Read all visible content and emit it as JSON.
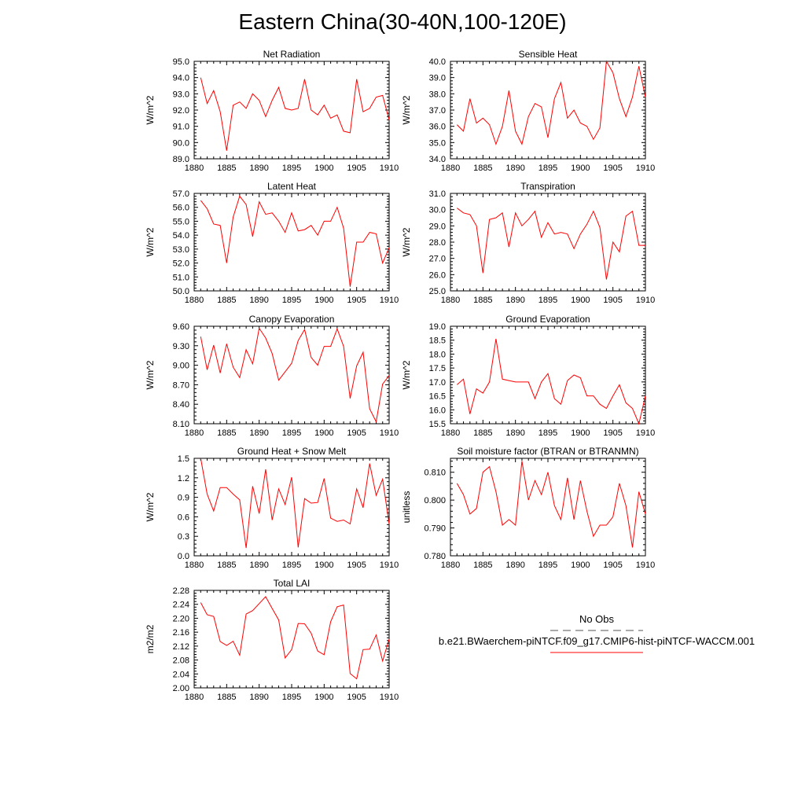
{
  "title": "Eastern China(30-40N,100-120E)",
  "colors": {
    "series": "#ff0000",
    "axis": "#000000",
    "obs": "#555555"
  },
  "legend": {
    "obs_label": "No Obs",
    "model_label": "b.e21.BWaerchem-piNTCF.f09_g17.CMIP6-hist-piNTCF-WACCM.001"
  },
  "chart_data": [
    {
      "type": "line",
      "title": "Net Radiation",
      "ylabel": "W/m^2",
      "xlim": [
        1880,
        1910
      ],
      "ylim": [
        89.0,
        95.0
      ],
      "xticks": [
        "1880",
        "1885",
        "1890",
        "1895",
        "1900",
        "1905",
        "1910"
      ],
      "yticks": [
        "89.0",
        "90.0",
        "91.0",
        "92.0",
        "93.0",
        "94.0",
        "95.0"
      ],
      "series": [
        {
          "x": [
            1881,
            1882,
            1883,
            1884,
            1885,
            1886,
            1887,
            1888,
            1889,
            1890,
            1891,
            1892,
            1893,
            1894,
            1895,
            1896,
            1897,
            1898,
            1899,
            1900,
            1901,
            1902,
            1903,
            1904,
            1905,
            1906,
            1907,
            1908,
            1909,
            1910
          ],
          "values": [
            94.0,
            92.4,
            93.2,
            91.9,
            89.5,
            92.3,
            92.5,
            92.1,
            93.0,
            92.6,
            91.6,
            92.6,
            93.4,
            92.1,
            92.0,
            92.1,
            93.9,
            92.0,
            91.7,
            92.3,
            91.5,
            91.7,
            90.7,
            90.6,
            93.9,
            91.9,
            92.1,
            92.8,
            92.9,
            91.4
          ]
        }
      ]
    },
    {
      "type": "line",
      "title": "Sensible Heat",
      "ylabel": "W/m^2",
      "xlim": [
        1880,
        1910
      ],
      "ylim": [
        34.0,
        40.0
      ],
      "xticks": [
        "1880",
        "1885",
        "1890",
        "1895",
        "1900",
        "1905",
        "1910"
      ],
      "yticks": [
        "34.0",
        "35.0",
        "36.0",
        "37.0",
        "38.0",
        "39.0",
        "40.0"
      ],
      "series": [
        {
          "x": [
            1881,
            1882,
            1883,
            1884,
            1885,
            1886,
            1887,
            1888,
            1889,
            1890,
            1891,
            1892,
            1893,
            1894,
            1895,
            1896,
            1897,
            1898,
            1899,
            1900,
            1901,
            1902,
            1903,
            1904,
            1905,
            1906,
            1907,
            1908,
            1909,
            1910
          ],
          "values": [
            36.1,
            35.7,
            37.7,
            36.2,
            36.5,
            36.1,
            34.9,
            36.0,
            38.2,
            35.7,
            34.9,
            36.6,
            37.4,
            37.2,
            35.3,
            37.7,
            38.7,
            36.5,
            37.0,
            36.2,
            36.0,
            35.2,
            35.9,
            40.0,
            39.3,
            37.7,
            36.6,
            37.8,
            39.7,
            37.8
          ]
        }
      ]
    },
    {
      "type": "line",
      "title": "Latent Heat",
      "ylabel": "W/m^2",
      "xlim": [
        1880,
        1910
      ],
      "ylim": [
        50.0,
        57.0
      ],
      "xticks": [
        "1880",
        "1885",
        "1890",
        "1895",
        "1900",
        "1905",
        "1910"
      ],
      "yticks": [
        "50.0",
        "51.0",
        "52.0",
        "53.0",
        "54.0",
        "55.0",
        "56.0",
        "57.0"
      ],
      "series": [
        {
          "x": [
            1881,
            1882,
            1883,
            1884,
            1885,
            1886,
            1887,
            1888,
            1889,
            1890,
            1891,
            1892,
            1893,
            1894,
            1895,
            1896,
            1897,
            1898,
            1899,
            1900,
            1901,
            1902,
            1903,
            1904,
            1905,
            1906,
            1907,
            1908,
            1909,
            1910
          ],
          "values": [
            56.5,
            55.9,
            54.8,
            54.7,
            52.0,
            55.3,
            56.8,
            56.2,
            53.9,
            56.4,
            55.5,
            55.6,
            55.0,
            54.2,
            55.6,
            54.3,
            54.4,
            54.7,
            54.0,
            55.0,
            55.0,
            56.0,
            54.5,
            50.3,
            53.5,
            53.5,
            54.2,
            54.1,
            52.0,
            53.1
          ]
        }
      ]
    },
    {
      "type": "line",
      "title": "Transpiration",
      "ylabel": "W/m^2",
      "xlim": [
        1880,
        1910
      ],
      "ylim": [
        25.0,
        31.0
      ],
      "xticks": [
        "1880",
        "1885",
        "1890",
        "1895",
        "1900",
        "1905",
        "1910"
      ],
      "yticks": [
        "25.0",
        "26.0",
        "27.0",
        "28.0",
        "29.0",
        "30.0",
        "31.0"
      ],
      "series": [
        {
          "x": [
            1881,
            1882,
            1883,
            1884,
            1885,
            1886,
            1887,
            1888,
            1889,
            1890,
            1891,
            1892,
            1893,
            1894,
            1895,
            1896,
            1897,
            1898,
            1899,
            1900,
            1901,
            1902,
            1903,
            1904,
            1905,
            1906,
            1907,
            1908,
            1909,
            1910
          ],
          "values": [
            30.1,
            29.8,
            29.7,
            29.0,
            26.1,
            29.4,
            29.5,
            29.8,
            27.7,
            29.8,
            29.0,
            29.4,
            29.9,
            28.3,
            29.2,
            28.5,
            28.6,
            28.5,
            27.6,
            28.5,
            29.1,
            29.9,
            28.9,
            25.7,
            28.0,
            27.4,
            29.6,
            29.9,
            27.8,
            27.8
          ]
        }
      ]
    },
    {
      "type": "line",
      "title": "Canopy Evaporation",
      "ylabel": "W/m^2",
      "xlim": [
        1880,
        1910
      ],
      "ylim": [
        8.1,
        9.6
      ],
      "xticks": [
        "1880",
        "1885",
        "1890",
        "1895",
        "1900",
        "1905",
        "1910"
      ],
      "yticks": [
        "8.10",
        "8.40",
        "8.70",
        "9.00",
        "9.30",
        "9.60"
      ],
      "series": [
        {
          "x": [
            1881,
            1882,
            1883,
            1884,
            1885,
            1886,
            1887,
            1888,
            1889,
            1890,
            1891,
            1892,
            1893,
            1894,
            1895,
            1896,
            1897,
            1898,
            1899,
            1900,
            1901,
            1902,
            1903,
            1904,
            1905,
            1906,
            1907,
            1908,
            1909,
            1910
          ],
          "values": [
            9.44,
            8.93,
            9.31,
            8.88,
            9.33,
            8.97,
            8.81,
            9.24,
            9.02,
            9.57,
            9.42,
            9.18,
            8.77,
            8.9,
            9.03,
            9.38,
            9.55,
            9.12,
            9.0,
            9.29,
            9.29,
            9.56,
            9.29,
            8.49,
            8.99,
            9.2,
            8.33,
            8.13,
            8.71,
            8.84
          ]
        }
      ]
    },
    {
      "type": "line",
      "title": "Ground Evaporation",
      "ylabel": "W/m^2",
      "xlim": [
        1880,
        1910
      ],
      "ylim": [
        15.5,
        19.0
      ],
      "xticks": [
        "1880",
        "1885",
        "1890",
        "1895",
        "1900",
        "1905",
        "1910"
      ],
      "yticks": [
        "15.5",
        "16.0",
        "16.5",
        "17.0",
        "17.5",
        "18.0",
        "18.5",
        "19.0"
      ],
      "series": [
        {
          "x": [
            1881,
            1882,
            1883,
            1884,
            1885,
            1886,
            1887,
            1888,
            1889,
            1890,
            1891,
            1892,
            1893,
            1894,
            1895,
            1896,
            1897,
            1898,
            1899,
            1900,
            1901,
            1902,
            1903,
            1904,
            1905,
            1906,
            1907,
            1908,
            1909,
            1910
          ],
          "values": [
            16.9,
            17.1,
            15.85,
            16.75,
            16.6,
            17.0,
            18.55,
            17.1,
            17.05,
            17.0,
            17.0,
            17.0,
            16.4,
            17.0,
            17.3,
            16.4,
            16.2,
            17.05,
            17.25,
            17.15,
            16.5,
            16.5,
            16.2,
            16.05,
            16.5,
            16.9,
            16.25,
            16.05,
            15.5,
            16.5
          ]
        }
      ]
    },
    {
      "type": "line",
      "title": "Ground Heat + Snow Melt",
      "ylabel": "W/m^2",
      "xlim": [
        1880,
        1910
      ],
      "ylim": [
        0.0,
        1.5
      ],
      "xticks": [
        "1880",
        "1885",
        "1890",
        "1895",
        "1900",
        "1905",
        "1910"
      ],
      "yticks": [
        "0.0",
        "0.3",
        "0.6",
        "0.9",
        "1.2",
        "1.5"
      ],
      "series": [
        {
          "x": [
            1881,
            1882,
            1883,
            1884,
            1885,
            1886,
            1887,
            1888,
            1889,
            1890,
            1891,
            1892,
            1893,
            1894,
            1895,
            1896,
            1897,
            1898,
            1899,
            1900,
            1901,
            1902,
            1903,
            1904,
            1905,
            1906,
            1907,
            1908,
            1909,
            1910
          ],
          "values": [
            1.5,
            0.95,
            0.69,
            1.05,
            1.05,
            0.95,
            0.86,
            0.12,
            1.07,
            0.65,
            1.33,
            0.55,
            1.03,
            0.79,
            1.21,
            0.13,
            0.88,
            0.81,
            0.82,
            1.19,
            0.58,
            0.53,
            0.55,
            0.49,
            1.03,
            0.74,
            1.42,
            0.93,
            1.18,
            0.49
          ]
        }
      ]
    },
    {
      "type": "line",
      "title": "Soil moisture factor (BTRAN or BTRANMN)",
      "ylabel": "unitless",
      "xlim": [
        1880,
        1910
      ],
      "ylim": [
        0.78,
        0.815
      ],
      "xticks": [
        "1880",
        "1885",
        "1890",
        "1895",
        "1900",
        "1905",
        "1910"
      ],
      "yticks": [
        "0.780",
        "0.790",
        "0.800",
        "0.810"
      ],
      "series": [
        {
          "x": [
            1881,
            1882,
            1883,
            1884,
            1885,
            1886,
            1887,
            1888,
            1889,
            1890,
            1891,
            1892,
            1893,
            1894,
            1895,
            1896,
            1897,
            1898,
            1899,
            1900,
            1901,
            1902,
            1903,
            1904,
            1905,
            1906,
            1907,
            1908,
            1909,
            1910
          ],
          "values": [
            0.806,
            0.802,
            0.795,
            0.797,
            0.81,
            0.812,
            0.803,
            0.791,
            0.793,
            0.791,
            0.814,
            0.8,
            0.807,
            0.802,
            0.81,
            0.798,
            0.793,
            0.808,
            0.793,
            0.807,
            0.796,
            0.787,
            0.791,
            0.791,
            0.794,
            0.806,
            0.798,
            0.783,
            0.803,
            0.795
          ]
        }
      ]
    },
    {
      "type": "line",
      "title": "Total LAI",
      "ylabel": "m2/m2",
      "xlim": [
        1880,
        1910
      ],
      "ylim": [
        2.0,
        2.28
      ],
      "xticks": [
        "1880",
        "1885",
        "1890",
        "1895",
        "1900",
        "1905",
        "1910"
      ],
      "yticks": [
        "2.00",
        "2.04",
        "2.08",
        "2.12",
        "2.16",
        "2.20",
        "2.24",
        "2.28"
      ],
      "series": [
        {
          "x": [
            1881,
            1882,
            1883,
            1884,
            1885,
            1886,
            1887,
            1888,
            1889,
            1890,
            1891,
            1892,
            1893,
            1894,
            1895,
            1896,
            1897,
            1898,
            1899,
            1900,
            1901,
            1902,
            1903,
            1904,
            1905,
            1906,
            1907,
            1908,
            1909,
            1910
          ],
          "values": [
            2.245,
            2.21,
            2.205,
            2.133,
            2.122,
            2.134,
            2.094,
            2.212,
            2.222,
            2.242,
            2.262,
            2.228,
            2.195,
            2.086,
            2.11,
            2.185,
            2.184,
            2.157,
            2.106,
            2.095,
            2.19,
            2.233,
            2.238,
            2.041,
            2.026,
            2.11,
            2.111,
            2.152,
            2.077,
            2.14
          ]
        }
      ]
    }
  ]
}
